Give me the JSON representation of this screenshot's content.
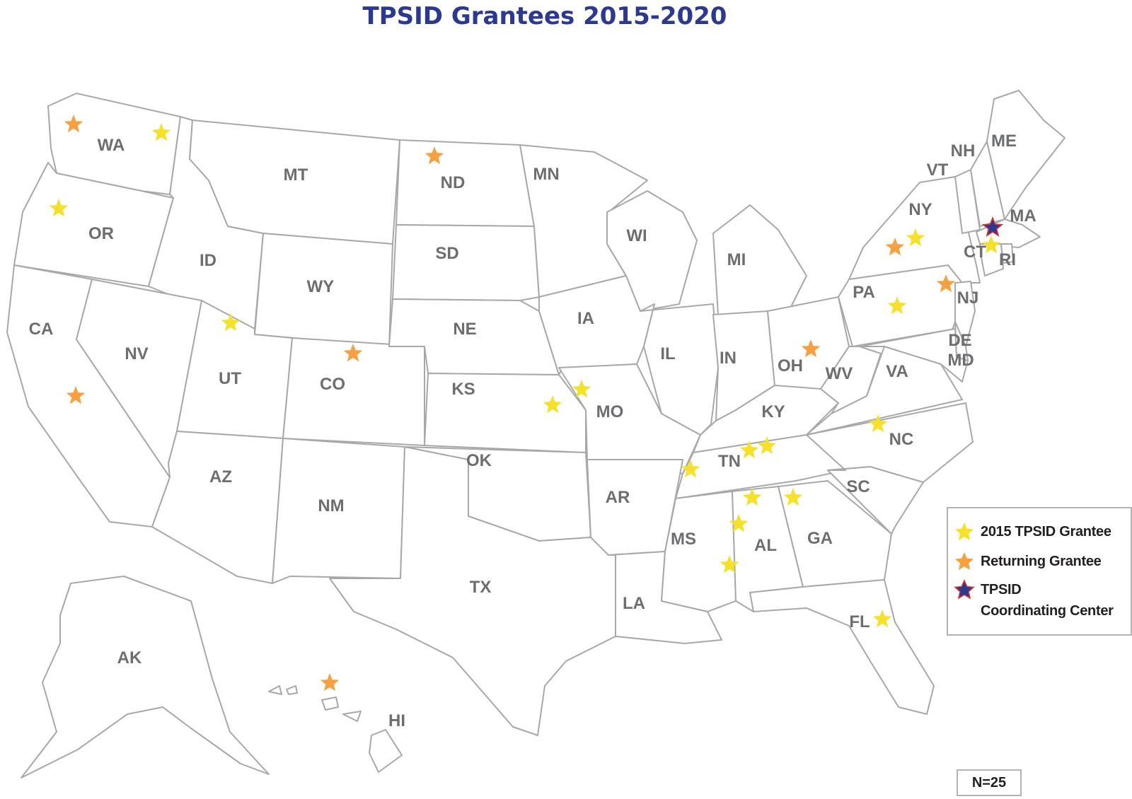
{
  "title": "TPSID Grantees 2015-2020",
  "colors": {
    "grantee_2015": "#f5e02a",
    "returning": "#f7a042",
    "coordinating_center": "#2b3990",
    "coordinating_center_outline": "#e2312a",
    "state_stroke": "#a8a8a8",
    "label": "#6d6e71",
    "title": "#2b3990"
  },
  "states": [
    "WA",
    "OR",
    "CA",
    "ID",
    "NV",
    "MT",
    "WY",
    "UT",
    "AZ",
    "CO",
    "NM",
    "ND",
    "SD",
    "NE",
    "KS",
    "OK",
    "TX",
    "MN",
    "IA",
    "MO",
    "AR",
    "LA",
    "WI",
    "IL",
    "MI",
    "IN",
    "OH",
    "KY",
    "TN",
    "MS",
    "AL",
    "GA",
    "FL",
    "SC",
    "NC",
    "VA",
    "WV",
    "PA",
    "NY",
    "VT",
    "NH",
    "ME",
    "MA",
    "CT",
    "RI",
    "NJ",
    "DE",
    "MD",
    "AK",
    "HI"
  ],
  "legend": {
    "grantee_2015": "2015 TPSID Grantee",
    "returning": "Returning Grantee",
    "center_line1": "TPSID",
    "center_line2": "Coordinating Center"
  },
  "markers": [
    {
      "state": "WA",
      "type": "returning"
    },
    {
      "state": "WA",
      "type": "grantee_2015"
    },
    {
      "state": "OR",
      "type": "grantee_2015"
    },
    {
      "state": "CA",
      "type": "returning"
    },
    {
      "state": "UT",
      "type": "grantee_2015"
    },
    {
      "state": "CO",
      "type": "returning"
    },
    {
      "state": "ND",
      "type": "returning"
    },
    {
      "state": "MO",
      "type": "grantee_2015"
    },
    {
      "state": "MO",
      "type": "grantee_2015"
    },
    {
      "state": "TN",
      "type": "grantee_2015"
    },
    {
      "state": "TN",
      "type": "grantee_2015"
    },
    {
      "state": "TN",
      "type": "grantee_2015"
    },
    {
      "state": "AL",
      "type": "grantee_2015"
    },
    {
      "state": "AL",
      "type": "grantee_2015"
    },
    {
      "state": "AL",
      "type": "grantee_2015"
    },
    {
      "state": "GA",
      "type": "grantee_2015"
    },
    {
      "state": "FL",
      "type": "grantee_2015"
    },
    {
      "state": "NC",
      "type": "grantee_2015"
    },
    {
      "state": "OH",
      "type": "returning"
    },
    {
      "state": "PA",
      "type": "grantee_2015"
    },
    {
      "state": "NY",
      "type": "returning"
    },
    {
      "state": "NY",
      "type": "grantee_2015"
    },
    {
      "state": "NJ",
      "type": "returning"
    },
    {
      "state": "CT",
      "type": "grantee_2015"
    },
    {
      "state": "MA",
      "type": "coordinating_center"
    },
    {
      "state": "HI",
      "type": "returning"
    }
  ],
  "count_label": "N=25"
}
